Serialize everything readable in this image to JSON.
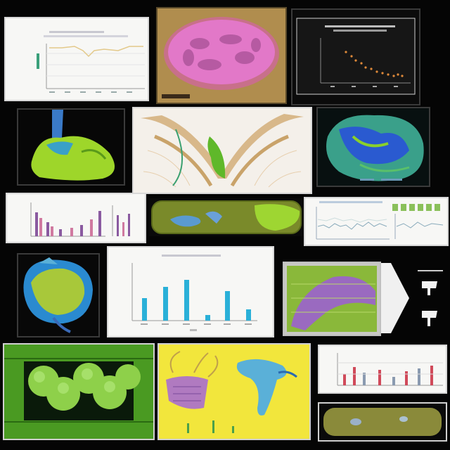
{
  "colors": {
    "background": "#050505",
    "panel_white": "#f7f7f5",
    "panel_dark": "#0b0b0b",
    "green": "#7bc62b",
    "blue": "#2a8fd0",
    "magenta": "#d35aa8",
    "yellow": "#f0e83a",
    "tan": "#c9a36a"
  }
}
